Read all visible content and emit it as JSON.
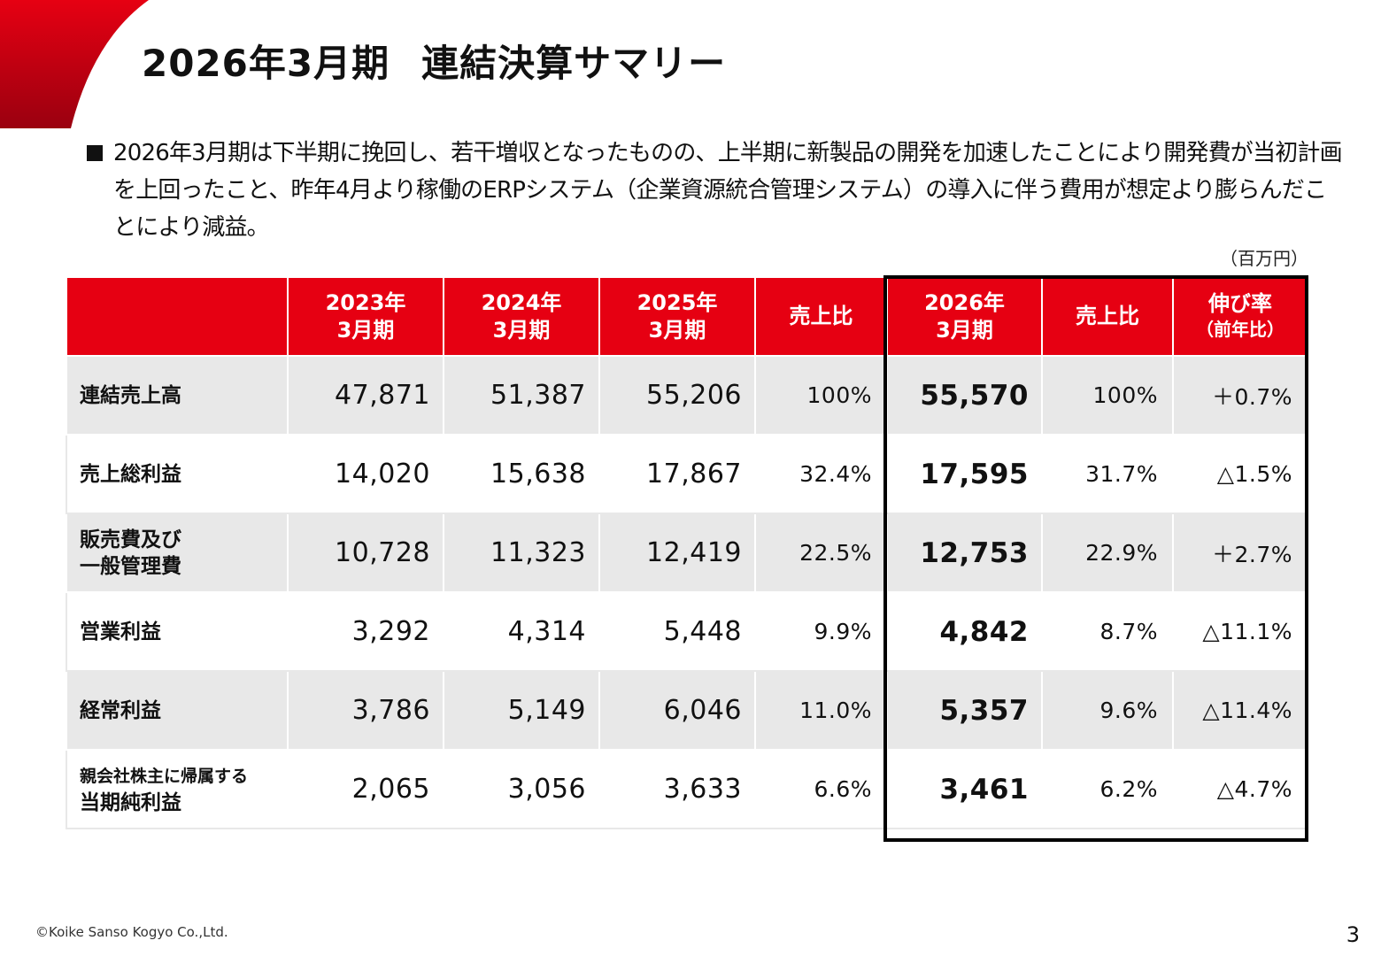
{
  "title": {
    "part1": "2026年3月期",
    "part2": "連結決算サマリー"
  },
  "description": "2026年3月期は下半期に挽回し、若干増収となったものの、上半期に新製品の開発を加速したことにより開発費が当初計画を上回ったこと、昨年4月より稼働のERPシステム（企業資源統合管理システム）の導入に伴う費用が想定より膨らんだことにより減益。",
  "unit": "（百万円）",
  "table": {
    "headers": [
      {
        "l1": "",
        "l2": ""
      },
      {
        "l1": "2023年",
        "l2": "3月期"
      },
      {
        "l1": "2024年",
        "l2": "3月期"
      },
      {
        "l1": "2025年",
        "l2": "3月期"
      },
      {
        "l1": "売上比",
        "l2": ""
      },
      {
        "l1": "2026年",
        "l2": "3月期"
      },
      {
        "l1": "売上比",
        "l2": ""
      },
      {
        "l1": "伸び率",
        "l2": "（前年比）"
      }
    ],
    "rows": [
      {
        "l1": "連結売上高",
        "l2": "",
        "fy2023": "47,871",
        "fy2024": "51,387",
        "fy2025": "55,206",
        "ratio2025": "100%",
        "fy2026": "55,570",
        "ratio2026": "100%",
        "growth": "＋0.7%"
      },
      {
        "l1": "売上総利益",
        "l2": "",
        "fy2023": "14,020",
        "fy2024": "15,638",
        "fy2025": "17,867",
        "ratio2025": "32.4%",
        "fy2026": "17,595",
        "ratio2026": "31.7%",
        "growth": "△1.5%"
      },
      {
        "l1": "販売費及び",
        "l2": "一般管理費",
        "fy2023": "10,728",
        "fy2024": "11,323",
        "fy2025": "12,419",
        "ratio2025": "22.5%",
        "fy2026": "12,753",
        "ratio2026": "22.9%",
        "growth": "＋2.7%"
      },
      {
        "l1": "営業利益",
        "l2": "",
        "fy2023": "3,292",
        "fy2024": "4,314",
        "fy2025": "5,448",
        "ratio2025": "9.9%",
        "fy2026": "4,842",
        "ratio2026": "8.7%",
        "growth": "△11.1%"
      },
      {
        "l1": "経常利益",
        "l2": "",
        "fy2023": "3,786",
        "fy2024": "5,149",
        "fy2025": "6,046",
        "ratio2025": "11.0%",
        "fy2026": "5,357",
        "ratio2026": "9.6%",
        "growth": "△11.4%"
      },
      {
        "l1": "親会社株主に帰属する",
        "l2": "当期純利益",
        "fy2023": "2,065",
        "fy2024": "3,056",
        "fy2025": "3,633",
        "ratio2025": "6.6%",
        "fy2026": "3,461",
        "ratio2026": "6.2%",
        "growth": "△4.7%"
      }
    ]
  },
  "footer": {
    "copyright": "©Koike Sanso Kogyo Co.,Ltd.",
    "page": "3"
  },
  "colors": {
    "accent": "#e60012",
    "row_shade": "#e8e8e8"
  }
}
